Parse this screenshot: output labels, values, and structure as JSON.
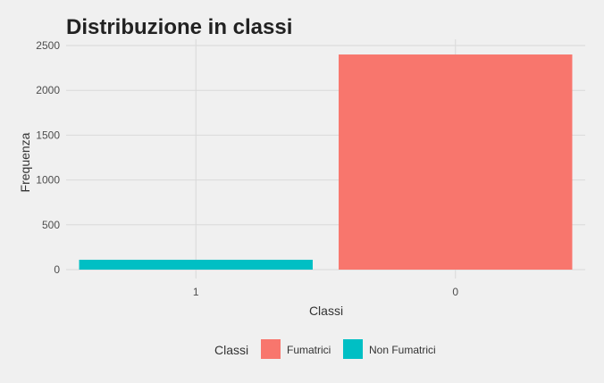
{
  "chart_data": {
    "type": "bar",
    "title": "Distribuzione in classi",
    "xlabel": "Classi",
    "ylabel": "Frequenza",
    "categories": [
      "1",
      "0"
    ],
    "values": [
      110,
      2400
    ],
    "bar_classes": [
      "Non Fumatrici",
      "Fumatrici"
    ],
    "ylim": [
      0,
      2500
    ],
    "yticks": [
      0,
      500,
      1000,
      1500,
      2000,
      2500
    ],
    "grid": true,
    "legend": {
      "title": "Classi",
      "position": "bottom",
      "entries": [
        {
          "label": "Fumatrici",
          "color": "#f8766d"
        },
        {
          "label": "Non Fumatrici",
          "color": "#00bfc4"
        }
      ]
    },
    "background": "#f0f0f0"
  }
}
